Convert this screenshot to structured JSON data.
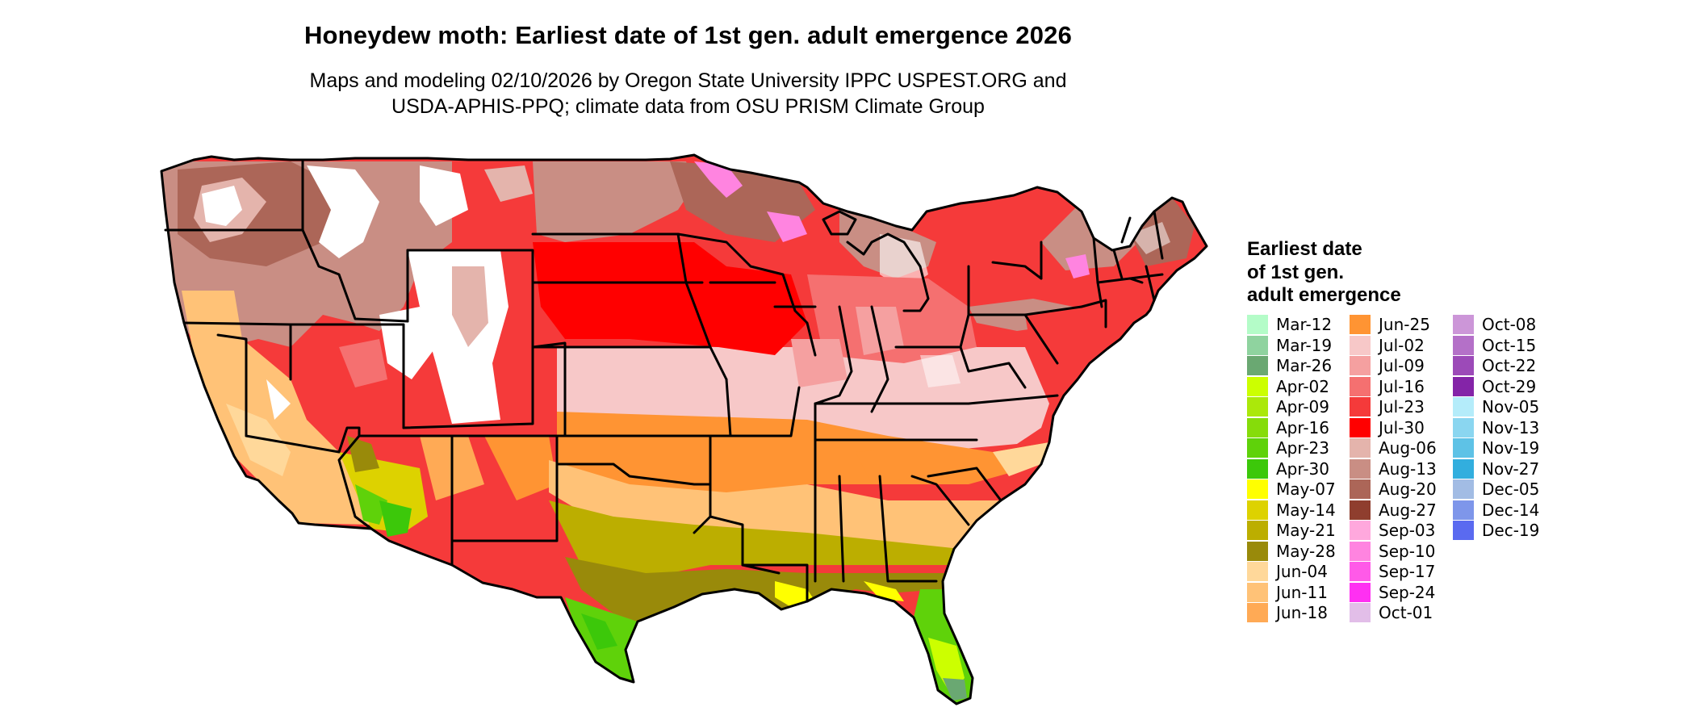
{
  "title": "Honeydew moth: Earliest date of 1st gen. adult emergence 2026",
  "subtitle_line1": "Maps and modeling 02/10/2026 by Oregon State University IPPC USPEST.ORG and",
  "subtitle_line2": "USDA-APHIS-PPQ; climate data from OSU PRISM Climate Group",
  "legend": {
    "title_lines": [
      "Earliest date",
      "of 1st gen.",
      "adult emergence"
    ],
    "columns": [
      [
        {
          "label": "Mar-12",
          "color": "#b4fcc8"
        },
        {
          "label": "Mar-19",
          "color": "#8fd39f"
        },
        {
          "label": "Mar-26",
          "color": "#6aa872"
        },
        {
          "label": "Apr-02",
          "color": "#ccff00"
        },
        {
          "label": "Apr-09",
          "color": "#abe80a"
        },
        {
          "label": "Apr-16",
          "color": "#86dc0a"
        },
        {
          "label": "Apr-23",
          "color": "#5fd20a"
        },
        {
          "label": "Apr-30",
          "color": "#3cc80a"
        },
        {
          "label": "May-07",
          "color": "#ffff00"
        },
        {
          "label": "May-14",
          "color": "#ddd200"
        },
        {
          "label": "May-21",
          "color": "#bcae00"
        },
        {
          "label": "May-28",
          "color": "#998a0a"
        },
        {
          "label": "Jun-04",
          "color": "#ffd89a"
        },
        {
          "label": "Jun-11",
          "color": "#ffc277"
        },
        {
          "label": "Jun-18",
          "color": "#ffaa55"
        }
      ],
      [
        {
          "label": "Jun-25",
          "color": "#ff9433"
        },
        {
          "label": "Jul-02",
          "color": "#f7c8c8"
        },
        {
          "label": "Jul-09",
          "color": "#f5a0a0"
        },
        {
          "label": "Jul-16",
          "color": "#f57070"
        },
        {
          "label": "Jul-23",
          "color": "#f53a3a"
        },
        {
          "label": "Jul-30",
          "color": "#ff0000"
        },
        {
          "label": "Aug-06",
          "color": "#e4b4ac"
        },
        {
          "label": "Aug-13",
          "color": "#c98e84"
        },
        {
          "label": "Aug-20",
          "color": "#ac6658"
        },
        {
          "label": "Aug-27",
          "color": "#8f3e2e"
        },
        {
          "label": "Sep-03",
          "color": "#ffa8dd"
        },
        {
          "label": "Sep-10",
          "color": "#ff84e0"
        },
        {
          "label": "Sep-17",
          "color": "#ff5ae8"
        },
        {
          "label": "Sep-24",
          "color": "#ff30f2"
        },
        {
          "label": "Oct-01",
          "color": "#e2bee8"
        }
      ],
      [
        {
          "label": "Oct-08",
          "color": "#cc96d8"
        },
        {
          "label": "Oct-15",
          "color": "#b470c8"
        },
        {
          "label": "Oct-22",
          "color": "#9c4ab8"
        },
        {
          "label": "Oct-29",
          "color": "#8424a8"
        },
        {
          "label": "Nov-05",
          "color": "#b4ecfa"
        },
        {
          "label": "Nov-13",
          "color": "#8ad6f0"
        },
        {
          "label": "Nov-19",
          "color": "#5ec2e6"
        },
        {
          "label": "Nov-27",
          "color": "#32aede"
        },
        {
          "label": "Dec-05",
          "color": "#a2bce4"
        },
        {
          "label": "Dec-14",
          "color": "#7e96ea"
        },
        {
          "label": "Dec-19",
          "color": "#5a6af0"
        }
      ]
    ]
  }
}
